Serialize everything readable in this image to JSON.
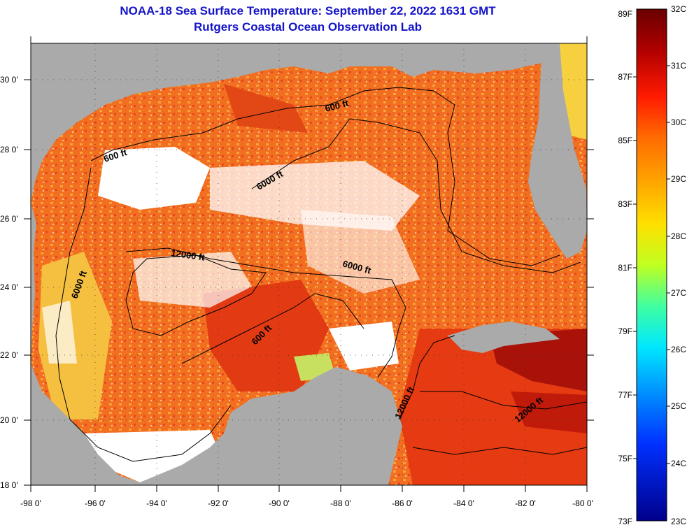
{
  "header": {
    "title": "NOAA-18 Sea Surface Temperature:  September 22, 2022 1631 GMT",
    "subtitle": "Rutgers Coastal Ocean Observation Lab"
  },
  "axes": {
    "lon_labels": [
      "-98 0'",
      "-96 0'",
      "-94 0'",
      "-92 0'",
      "-90 0'",
      "-88 0'",
      "-86 0'",
      "-84 0'",
      "-82 0'",
      "-80 0'"
    ],
    "lat_labels": [
      "30 0'",
      "28 0'",
      "26 0'",
      "24 0'",
      "22 0'",
      "20 0'",
      "18 0'"
    ]
  },
  "contours": {
    "labels": [
      "600 ft",
      "600 ft",
      "6000 ft",
      "6000 ft",
      "6000 ft",
      "12000 ft",
      "600 ft",
      "12000 ft",
      "12000 ft"
    ]
  },
  "colorbar": {
    "fahrenheit": [
      "89F",
      "87F",
      "85F",
      "83F",
      "81F",
      "79F",
      "77F",
      "75F",
      "73F"
    ],
    "celsius": [
      "32C",
      "31C",
      "30C",
      "29C",
      "28C",
      "27C",
      "26C",
      "25C",
      "24C",
      "23C"
    ]
  },
  "colors": {
    "land": "#aaaaaa",
    "cloud": "#ffffff",
    "title": "#1414c8",
    "sst_main": "#f06a1e"
  }
}
